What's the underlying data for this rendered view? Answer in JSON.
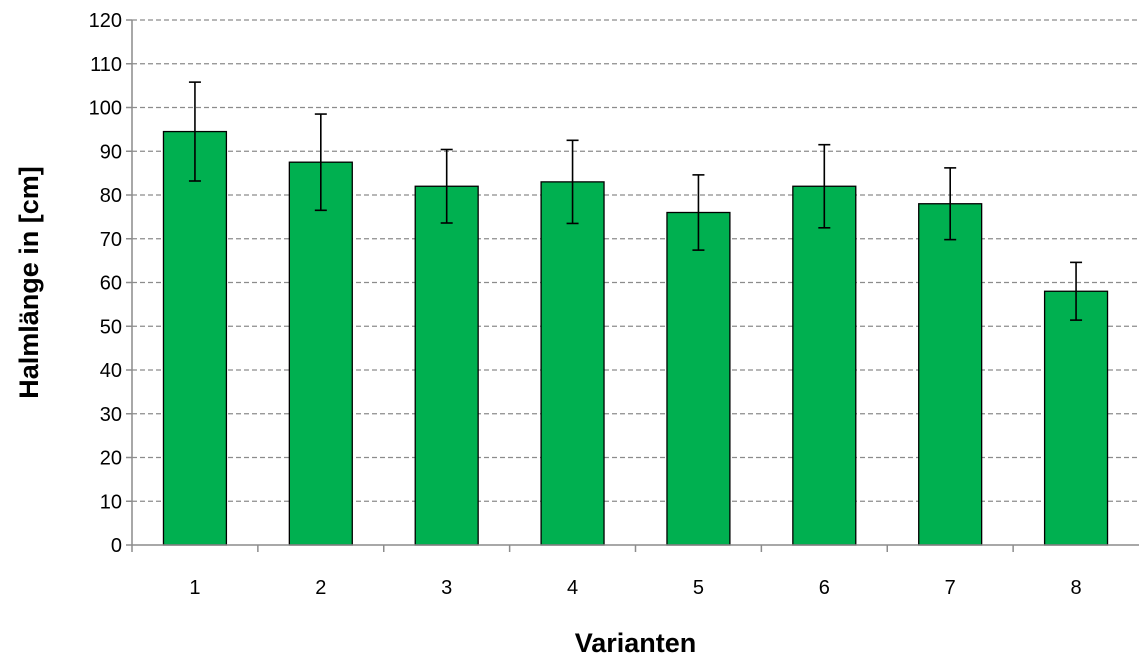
{
  "chart_data": {
    "type": "bar",
    "title": "",
    "xlabel": "Varianten",
    "ylabel": "Halmlänge in [cm]",
    "categories": [
      "1",
      "2",
      "3",
      "4",
      "5",
      "6",
      "7",
      "8"
    ],
    "values": [
      94.5,
      87.5,
      82,
      83,
      76,
      82,
      78,
      58
    ],
    "error": [
      11.3,
      11,
      8.4,
      9.5,
      8.6,
      9.5,
      8.2,
      6.6
    ],
    "ylim": [
      0,
      120
    ],
    "yticks": [
      0,
      10,
      20,
      30,
      40,
      50,
      60,
      70,
      80,
      90,
      100,
      110,
      120
    ],
    "grid": true,
    "legend": "none",
    "bar_color": "#00b050"
  }
}
